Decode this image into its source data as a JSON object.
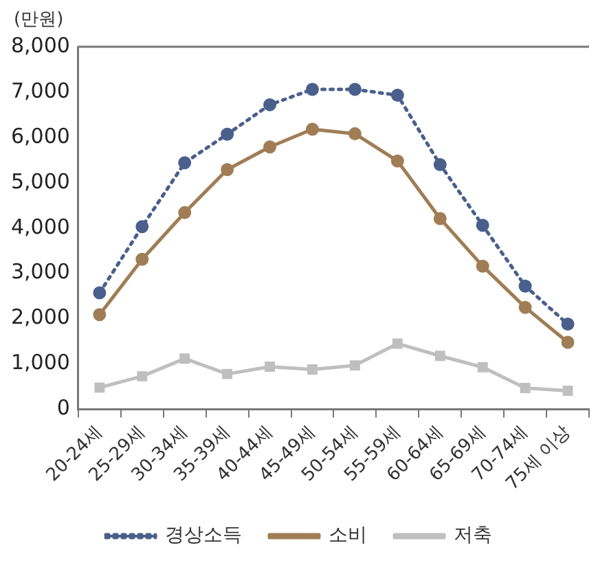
{
  "chart_data": {
    "type": "line",
    "ylabel": "(만원)",
    "categories": [
      "20-24세",
      "25-29세",
      "30-34세",
      "35-39세",
      "40-44세",
      "45-49세",
      "50-54세",
      "55-59세",
      "60-64세",
      "65-69세",
      "70-74세",
      "75세 이상"
    ],
    "series": [
      {
        "name": "경상소득",
        "color": "#4a5f8c",
        "marker": "circle",
        "line_style": "dotted",
        "values": [
          2570,
          4030,
          5440,
          6070,
          6720,
          7060,
          7060,
          6930,
          5400,
          4060,
          2720,
          1880
        ]
      },
      {
        "name": "소비",
        "color": "#a07d55",
        "marker": "circle",
        "line_style": "solid",
        "values": [
          2090,
          3310,
          4340,
          5290,
          5790,
          6180,
          6080,
          5480,
          4210,
          3160,
          2250,
          1480
        ]
      },
      {
        "name": "저축",
        "color": "#bfbfbf",
        "marker": "square",
        "line_style": "solid",
        "values": [
          480,
          730,
          1120,
          780,
          940,
          880,
          970,
          1450,
          1180,
          930,
          470,
          410
        ]
      }
    ],
    "ylim": [
      0,
      8000
    ],
    "yticks": [
      0,
      {
        "value": 1000,
        "label": "1,000"
      },
      {
        "value": 2000,
        "label": "2,000"
      },
      {
        "value": 3000,
        "label": "3,000"
      },
      {
        "value": 4000,
        "label": "4,000"
      },
      {
        "value": 5000,
        "label": "5,000"
      },
      {
        "value": 6000,
        "label": "6,000"
      },
      {
        "value": 7000,
        "label": "7,000"
      },
      {
        "value": 8000,
        "label": "8,000"
      }
    ],
    "grid": false,
    "legend": "bottom"
  }
}
